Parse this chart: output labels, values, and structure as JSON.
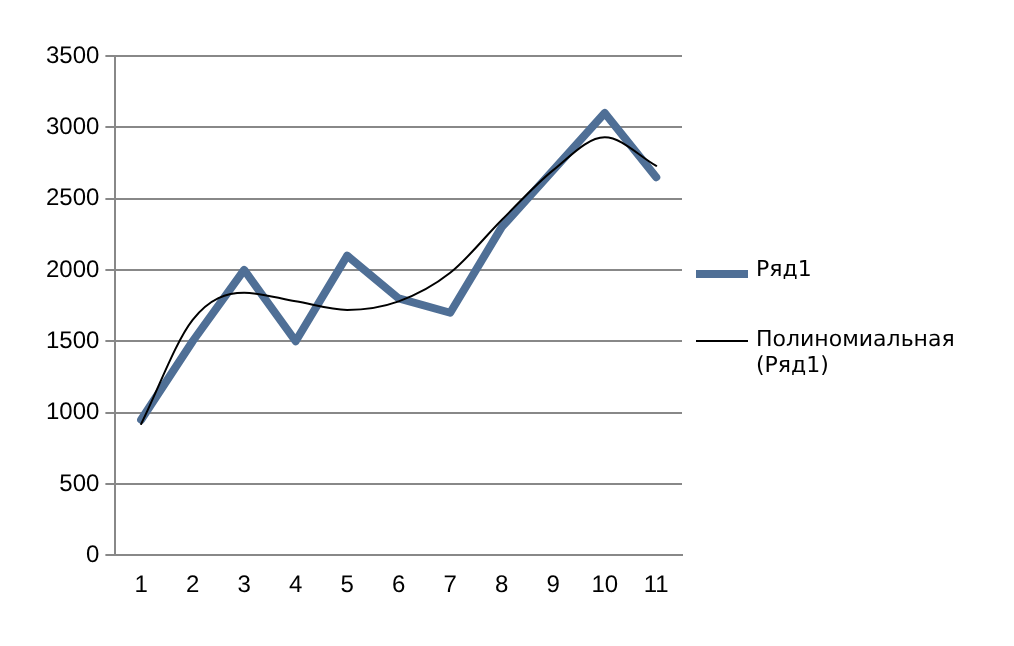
{
  "chart_data": {
    "type": "line",
    "categories": [
      "1",
      "2",
      "3",
      "4",
      "5",
      "6",
      "7",
      "8",
      "9",
      "10",
      "11"
    ],
    "series": [
      {
        "name": "Ряд1",
        "color": "#4f6f96",
        "values": [
          950,
          1500,
          2000,
          1500,
          2100,
          1800,
          1700,
          2300,
          2700,
          3100,
          2650
        ]
      },
      {
        "name": "Полиномиальная (Ряд1)",
        "color": "#000000",
        "values": [
          920,
          1650,
          1840,
          1780,
          1720,
          1780,
          1980,
          2350,
          2700,
          2930,
          2730
        ]
      }
    ],
    "ylim": [
      0,
      3500
    ],
    "yticks": [
      0,
      500,
      1000,
      1500,
      2000,
      2500,
      3000,
      3500
    ],
    "grid": "y",
    "legend": "right",
    "marker": "none"
  }
}
